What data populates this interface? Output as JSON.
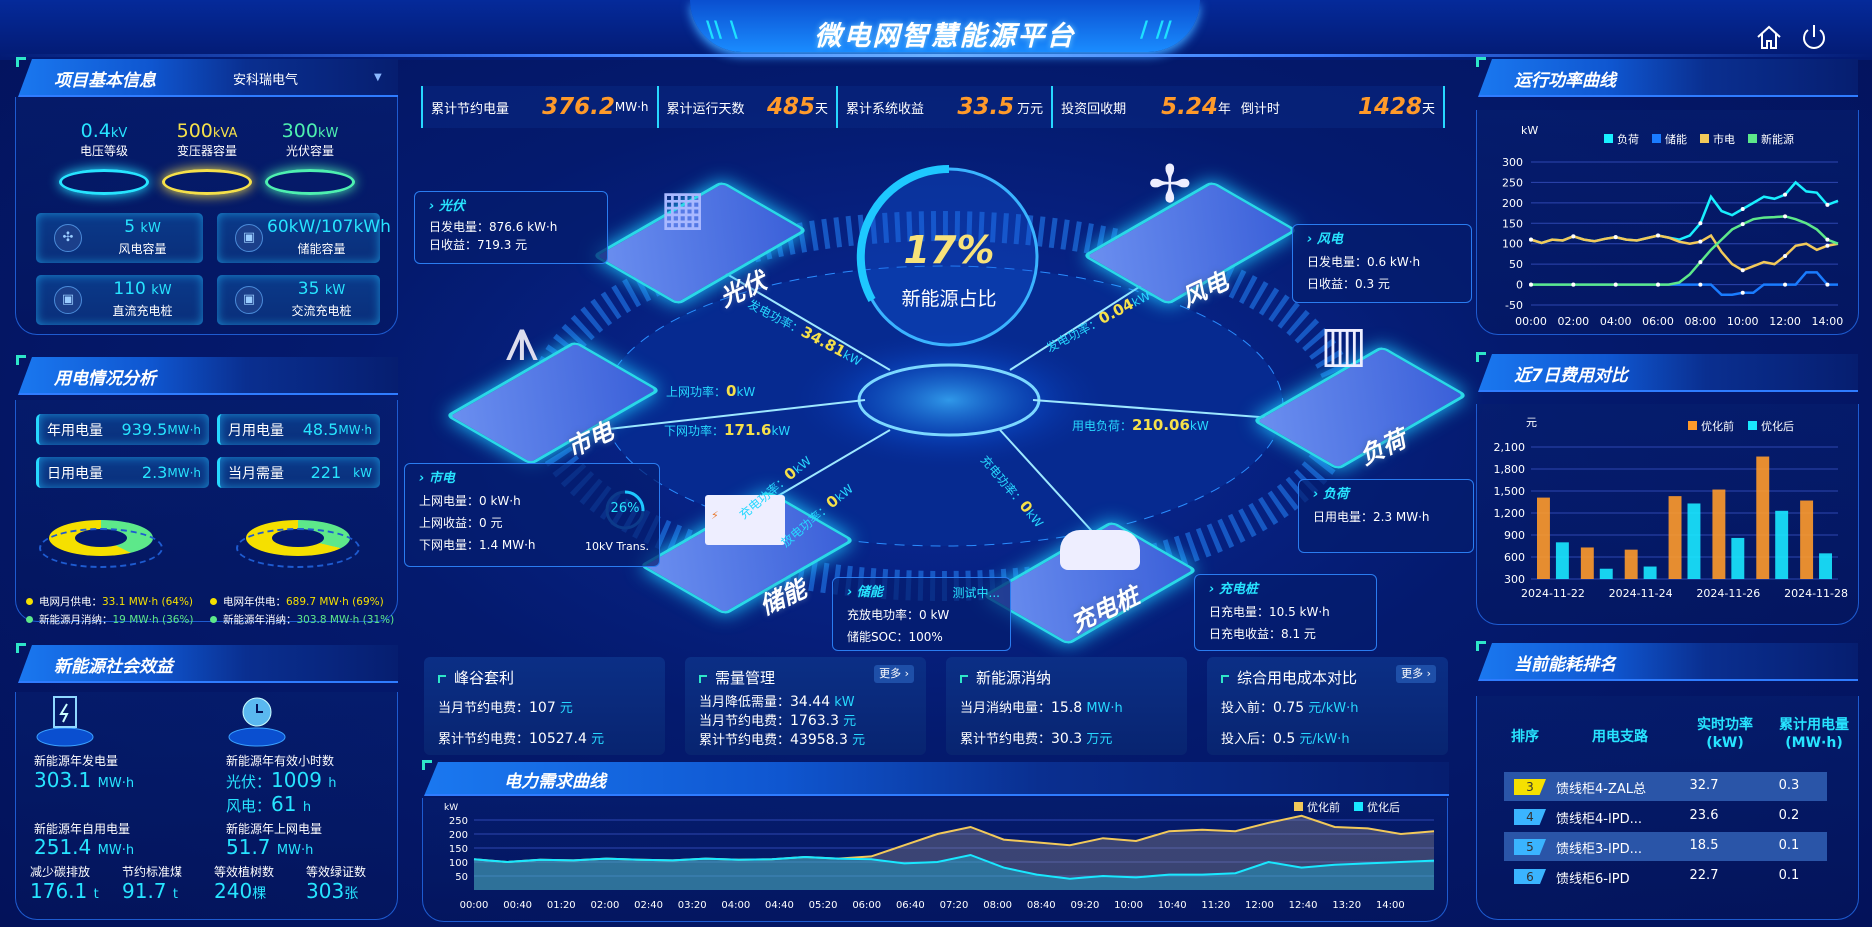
{
  "header": {
    "title": "微电网智慧能源平台",
    "home_icon": "home-icon",
    "power_icon": "power-icon"
  },
  "stats": [
    {
      "label": "累计节约电量",
      "value": "376.2",
      "unit": "MW·h"
    },
    {
      "label": "累计运行天数",
      "value": "485",
      "unit": "天"
    },
    {
      "label": "累计系统收益",
      "value": "33.5",
      "unit": "万元"
    },
    {
      "label": "投资回收期",
      "value": "5.24",
      "unit": "年"
    },
    {
      "label": "倒计时",
      "value": "1428",
      "unit": "天"
    }
  ],
  "project": {
    "title": "项目基本信息",
    "company": "安科瑞电气",
    "pedestals": [
      {
        "value": "0.4",
        "unit": "kV",
        "label": "电压等级",
        "color": "#27e4ff"
      },
      {
        "value": "500",
        "unit": "kVA",
        "label": "变压器容量",
        "color": "#f5e04a"
      },
      {
        "value": "300",
        "unit": "kW",
        "label": "光伏容量",
        "color": "#4ef0b0"
      }
    ],
    "boxes": [
      {
        "value": "5",
        "unit": "kW",
        "label": "风电容量",
        "icon": "wind-turbine-icon"
      },
      {
        "value": "60kW/107kWh",
        "unit": "",
        "label": "储能容量",
        "icon": "battery-icon"
      },
      {
        "value": "110",
        "unit": "kW",
        "label": "直流充电桩",
        "icon": "charger-icon"
      },
      {
        "value": "35",
        "unit": "kW",
        "label": "交流充电桩",
        "icon": "charger-icon"
      }
    ]
  },
  "usage": {
    "title": "用电情况分析",
    "boxes": [
      {
        "label": "年用电量",
        "value": "939.5",
        "unit": "MW·h"
      },
      {
        "label": "月用电量",
        "value": "48.5",
        "unit": "MW·h"
      },
      {
        "label": "日用电量",
        "value": "2.3",
        "unit": "MW·h"
      },
      {
        "label": "当月需量",
        "value": "221",
        "unit": "kW"
      }
    ],
    "donuts": [
      {
        "grid_pct": 64,
        "new_pct": 36
      },
      {
        "grid_pct": 69,
        "new_pct": 31
      }
    ],
    "legend": [
      {
        "label": "电网月供电：",
        "value": "33.1 MW·h (64%)"
      },
      {
        "label": "新能源月消纳：",
        "value": "19 MW·h (36%)"
      },
      {
        "label": "电网年供电：",
        "value": "689.7 MW·h (69%)"
      },
      {
        "label": "新能源年消纳：",
        "value": "303.8 MW·h (31%)"
      }
    ],
    "colors": {
      "grid": "#f5e000",
      "new": "#5de88a"
    }
  },
  "social": {
    "title": "新能源社会效益",
    "gen_label": "新能源年发电量",
    "gen_value": "303.1",
    "gen_unit": "MW·h",
    "hours_label": "新能源年有效小时数",
    "pv_label": "光伏：",
    "pv_value": "1009",
    "wind_label": "风电：",
    "wind_value": "61",
    "h_unit": "h",
    "self_label": "新能源年自用电量",
    "self_value": "251.4",
    "self_unit": "MW·h",
    "grid_label": "新能源年上网电量",
    "grid_value": "51.7",
    "grid_unit": "MW·h",
    "carbon_label": "减少碳排放",
    "carbon_value": "176.1",
    "carbon_unit": "t",
    "coal_label": "节约标准煤",
    "coal_value": "91.7",
    "coal_unit": "t",
    "tree_label": "等效植树数",
    "tree_value": "240",
    "tree_unit": "棵",
    "cert_label": "等效绿证数",
    "cert_value": "303",
    "cert_unit": "张"
  },
  "center": {
    "ratio": "17%",
    "ratio_label": "新能源占比",
    "nodes": {
      "pv": "光伏",
      "wind": "风电",
      "grid": "市电",
      "load": "负荷",
      "storage": "储能",
      "charger": "充电桩"
    },
    "flows": {
      "pv": {
        "label": "发电功率：",
        "value": "34.81",
        "unit": "kW"
      },
      "wind": {
        "label": "发电功率：",
        "value": "0.04",
        "unit": "kW"
      },
      "up": {
        "label": "上网功率：",
        "value": "0",
        "unit": "kW"
      },
      "down": {
        "label": "下网功率：",
        "value": "171.6",
        "unit": "kW"
      },
      "load": {
        "label": "用电负荷：",
        "value": "210.06",
        "unit": "kW"
      },
      "charge": {
        "label": "充电功率：",
        "value": "0",
        "unit": "kW"
      },
      "discharge": {
        "label": "放电功率：",
        "value": "0",
        "unit": "kW"
      },
      "pile": {
        "label": "充电功率：",
        "value": "0",
        "unit": "kW"
      }
    },
    "info": {
      "pv": {
        "title": "光伏",
        "l1": "日发电量：876.6 kW·h",
        "l2": "日收益：719.3 元"
      },
      "wind": {
        "title": "风电",
        "l1": "日发电量：0.6 kW·h",
        "l2": "日收益：0.3 元"
      },
      "grid": {
        "title": "市电",
        "l1": "上网电量：0 kW·h",
        "l2": "上网收益：0 元",
        "l3": "下网电量：1.4 MW·h",
        "gauge": "26%",
        "gauge_pct": 26,
        "gauge_label": "10kV Trans."
      },
      "load": {
        "title": "负荷",
        "l1": "日用电量：2.3 MW·h"
      },
      "storage": {
        "title": "储能",
        "status": "测试中...",
        "l1": "充放电功率：0 kW",
        "l2": "储能SOC：100%"
      },
      "charger": {
        "title": "充电桩",
        "l1": "日充电量：10.5 kW·h",
        "l2": "日充电收益：8.1 元"
      }
    }
  },
  "cards": [
    {
      "title": "峰谷套利",
      "rows": [
        {
          "k": "当月节约电费：",
          "v": "107",
          "u": "元"
        },
        {
          "k": "累计节约电费：",
          "v": "10527.4",
          "u": "元"
        }
      ]
    },
    {
      "title": "需量管理",
      "more": "更多 ›",
      "rows": [
        {
          "k": "当月降低需量：",
          "v": "34.44",
          "u": "kW"
        },
        {
          "k": "当月节约电费：",
          "v": "1763.3",
          "u": "元"
        },
        {
          "k": "累计节约电费：",
          "v": "43958.3",
          "u": "元"
        }
      ]
    },
    {
      "title": "新能源消纳",
      "rows": [
        {
          "k": "当月消纳电量：",
          "v": "15.8",
          "u": "MW·h"
        },
        {
          "k": "累计节约电费：",
          "v": "30.3",
          "u": "万元"
        }
      ]
    },
    {
      "title": "综合用电成本对比",
      "more": "更多 ›",
      "rows": [
        {
          "k": "投入前：",
          "v": "0.75",
          "u": "元/kW·h"
        },
        {
          "k": "投入后：",
          "v": "0.5",
          "u": "元/kW·h"
        }
      ]
    }
  ],
  "right": {
    "power_title": "运行功率曲线",
    "cost_title": "近7日费用对比",
    "rank_title": "当前能耗排名",
    "demand_title": "电力需求曲线"
  },
  "ranking": {
    "headers": [
      "排序",
      "用电支路",
      "实时功率\n(kW)",
      "累计用电量\n(MW·h)"
    ],
    "rows": [
      {
        "rank": "3",
        "name": "馈线柜4-ZAL总",
        "power": "32.7",
        "energy": "0.3",
        "color": "#f5e000"
      },
      {
        "rank": "4",
        "name": "馈线柜4-IPD...",
        "power": "23.6",
        "energy": "0.2",
        "color": "#3ab4ff"
      },
      {
        "rank": "5",
        "name": "馈线柜3-IPD...",
        "power": "18.5",
        "energy": "0.1",
        "color": "#3ab4ff"
      },
      {
        "rank": "6",
        "name": "馈线柜6-IPD",
        "power": "22.7",
        "energy": "0.1",
        "color": "#3ab4ff"
      }
    ]
  },
  "chart_data": [
    {
      "type": "line",
      "id": "power",
      "ylabel": "kW",
      "ylim": [
        -50,
        300
      ],
      "yticks": [
        -50,
        0,
        50,
        100,
        150,
        200,
        250,
        300
      ],
      "xticks": [
        "00:00",
        "02:00",
        "04:00",
        "06:00",
        "08:00",
        "10:00",
        "12:00",
        "14:00"
      ],
      "grid": true,
      "legend": "top",
      "x": [
        "00:00",
        "00:30",
        "01:00",
        "01:30",
        "02:00",
        "02:30",
        "03:00",
        "03:30",
        "04:00",
        "04:30",
        "05:00",
        "05:30",
        "06:00",
        "06:30",
        "07:00",
        "07:30",
        "08:00",
        "08:30",
        "09:00",
        "09:30",
        "10:00",
        "10:30",
        "11:00",
        "11:30",
        "12:00",
        "12:30",
        "13:00",
        "13:30",
        "14:00",
        "14:30"
      ],
      "series": [
        {
          "name": "负荷",
          "color": "#19f0ff",
          "values": [
            110,
            102,
            110,
            108,
            118,
            110,
            106,
            112,
            116,
            110,
            108,
            114,
            120,
            115,
            110,
            120,
            150,
            215,
            180,
            170,
            185,
            200,
            215,
            210,
            220,
            250,
            228,
            225,
            195,
            205
          ]
        },
        {
          "name": "储能",
          "color": "#1a7cff",
          "values": [
            0,
            0,
            0,
            0,
            0,
            0,
            0,
            0,
            0,
            0,
            0,
            0,
            0,
            0,
            0,
            0,
            0,
            0,
            -25,
            -25,
            -20,
            -20,
            0,
            0,
            0,
            0,
            30,
            30,
            0,
            0
          ]
        },
        {
          "name": "市电",
          "color": "#f2c95a",
          "values": [
            110,
            102,
            110,
            108,
            118,
            110,
            106,
            112,
            116,
            110,
            108,
            114,
            120,
            115,
            105,
            100,
            105,
            120,
            80,
            50,
            35,
            45,
            55,
            50,
            70,
            95,
            100,
            85,
            95,
            100
          ]
        },
        {
          "name": "新能源",
          "color": "#5de88a",
          "values": [
            0,
            0,
            0,
            0,
            0,
            0,
            0,
            0,
            0,
            0,
            0,
            0,
            0,
            0,
            5,
            25,
            55,
            85,
            110,
            135,
            148,
            160,
            164,
            165,
            167,
            160,
            150,
            135,
            110,
            100
          ]
        }
      ]
    },
    {
      "type": "bar",
      "id": "cost",
      "ylabel": "元",
      "ylim": [
        300,
        2100
      ],
      "yticks": [
        300,
        600,
        900,
        1200,
        1500,
        1800,
        2100
      ],
      "grid": true,
      "legend": "top-right",
      "categories": [
        "2024-11-22",
        "2024-11-23",
        "2024-11-24",
        "2024-11-25",
        "2024-11-26",
        "2024-11-27",
        "2024-11-28"
      ],
      "xtick_labels": [
        "2024-11-22",
        "2024-11-24",
        "2024-11-26",
        "2024-11-28"
      ],
      "series": [
        {
          "name": "优化前",
          "color": "#ff9a2a",
          "values": [
            1410,
            730,
            700,
            1430,
            1520,
            1970,
            1370
          ]
        },
        {
          "name": "优化后",
          "color": "#19e8ff",
          "values": [
            800,
            440,
            470,
            1330,
            860,
            1230,
            650
          ]
        }
      ]
    },
    {
      "type": "area",
      "id": "demand",
      "ylabel": "kW",
      "ylim": [
        0,
        300
      ],
      "yticks": [
        50,
        100,
        150,
        200,
        250
      ],
      "grid": true,
      "legend": "top-right",
      "xticks": [
        "00:00",
        "00:40",
        "01:20",
        "02:00",
        "02:40",
        "03:20",
        "04:00",
        "04:40",
        "05:20",
        "06:00",
        "06:40",
        "07:20",
        "08:00",
        "08:40",
        "09:20",
        "10:00",
        "10:40",
        "11:20",
        "12:00",
        "12:40",
        "13:20",
        "14:00"
      ],
      "series": [
        {
          "name": "优化前",
          "color": "#f2c95a",
          "values": [
            110,
            100,
            108,
            106,
            112,
            108,
            106,
            112,
            108,
            110,
            118,
            112,
            120,
            160,
            200,
            225,
            180,
            170,
            160,
            185,
            175,
            210,
            215,
            210,
            240,
            265,
            225,
            220,
            200,
            210
          ]
        },
        {
          "name": "优化后",
          "color": "#19e8ff",
          "values": [
            110,
            100,
            108,
            106,
            112,
            108,
            106,
            112,
            108,
            110,
            118,
            112,
            110,
            95,
            100,
            125,
            80,
            55,
            40,
            50,
            45,
            55,
            55,
            60,
            100,
            80,
            90,
            95,
            100,
            105
          ]
        }
      ]
    }
  ]
}
